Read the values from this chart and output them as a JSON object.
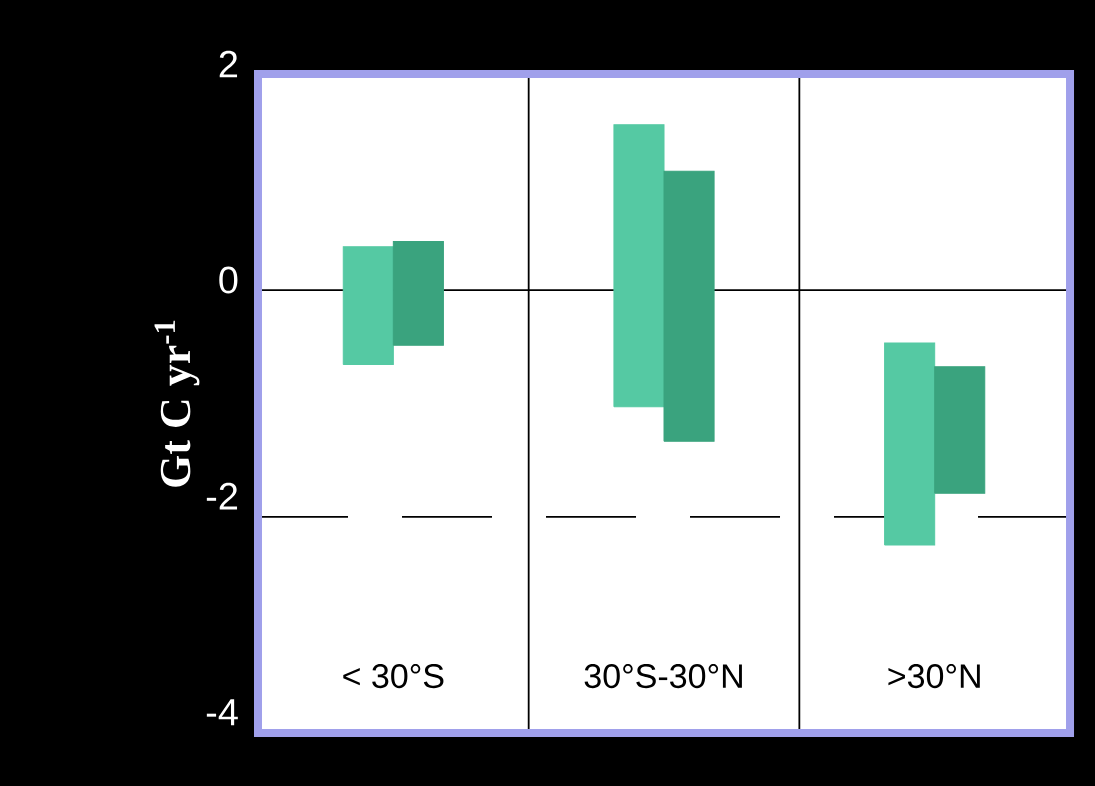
{
  "chart_data": {
    "type": "bar",
    "ylabel": "Gt C yr$^{-1}$",
    "categories": [
      "< 30°S",
      "30°S-30°N",
      ">30°N"
    ],
    "series": [
      {
        "color": "#55c9a3",
        "base": [
          -0.69,
          -1.08,
          -2.36
        ],
        "values": [
          1.09,
          2.61,
          1.87
        ]
      },
      {
        "color": "#3aa37e",
        "base": [
          -0.51,
          -1.4,
          -1.88
        ],
        "values": [
          0.96,
          2.5,
          1.17
        ]
      }
    ],
    "ylim": [
      -4.1,
      2
    ],
    "yticks": [
      -4,
      -2,
      0,
      2
    ],
    "grid": false,
    "ref_lines": [
      {
        "axis": "y",
        "value": 0,
        "color": "#000000",
        "line_style": "solid"
      },
      {
        "axis": "y",
        "value": -2.1,
        "color": "#000000",
        "line_style": "dashed"
      }
    ]
  }
}
